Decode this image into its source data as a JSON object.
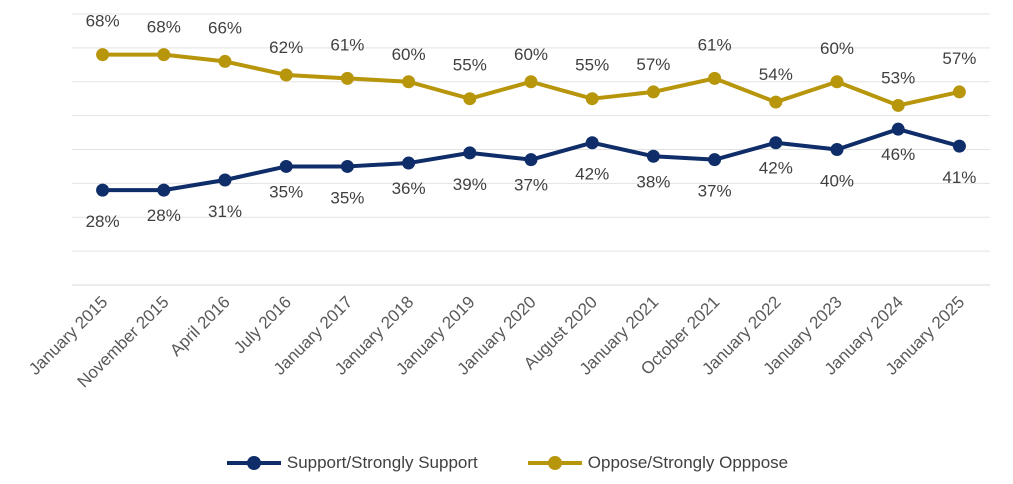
{
  "chart_data": {
    "type": "line",
    "title": "",
    "xlabel": "",
    "ylabel": "",
    "ylim": [
      0,
      80
    ],
    "grid": true,
    "legend_position": "bottom",
    "categories": [
      "January 2015",
      "November 2015",
      "April 2016",
      "July 2016",
      "January 2017",
      "January 2018",
      "January 2019",
      "January 2020",
      "August 2020",
      "January 2021",
      "October 2021",
      "January 2022",
      "January 2023",
      "January 2024",
      "January 2025"
    ],
    "series": [
      {
        "name": "Support/Strongly Support",
        "color": "#0F2D69",
        "values": [
          28,
          28,
          31,
          35,
          35,
          36,
          39,
          37,
          42,
          38,
          37,
          42,
          40,
          46,
          41
        ],
        "labels": [
          "28%",
          "28%",
          "31%",
          "35%",
          "35%",
          "36%",
          "39%",
          "37%",
          "42%",
          "38%",
          "37%",
          "42%",
          "40%",
          "46%",
          "41%"
        ],
        "label_side": [
          "below",
          "below",
          "below",
          "below",
          "below",
          "below",
          "below",
          "below",
          "below",
          "below",
          "below",
          "below",
          "below",
          "below",
          "below"
        ]
      },
      {
        "name": "Oppose/Strongly Opppose",
        "color": "#B8960C",
        "values": [
          68,
          68,
          66,
          62,
          61,
          60,
          55,
          60,
          55,
          57,
          61,
          54,
          60,
          53,
          57
        ],
        "labels": [
          "68%",
          "68%",
          "66%",
          "62%",
          "61%",
          "60%",
          "55%",
          "60%",
          "55%",
          "57%",
          "61%",
          "54%",
          "60%",
          "53%",
          "57%"
        ],
        "label_side": [
          "above",
          "above",
          "above",
          "above",
          "above",
          "above",
          "above",
          "above",
          "above",
          "above",
          "above",
          "above",
          "above",
          "above",
          "above"
        ]
      }
    ]
  }
}
